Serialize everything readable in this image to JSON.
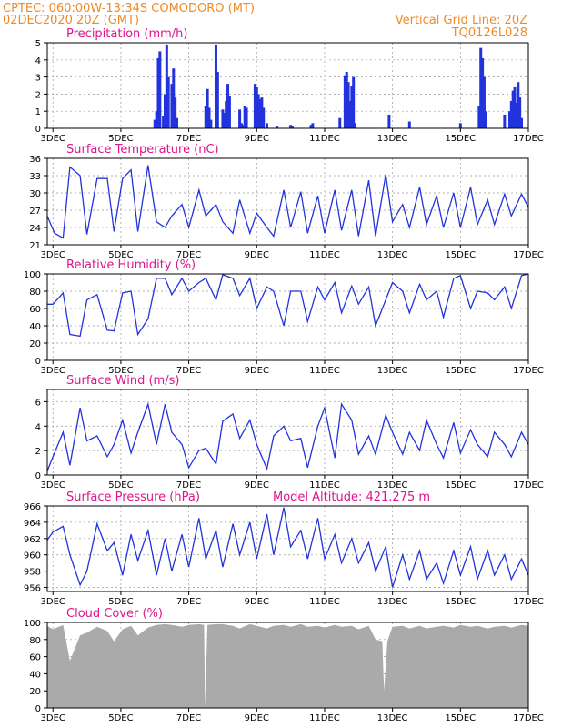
{
  "header": {
    "line1_left": "CPTEC:   060:00W-13:34S   COMODORO (MT)",
    "line2_left": "02DEC2020 20Z (GMT)",
    "line1_right": "Vertical Grid Line: 20Z",
    "line2_right": "TQ0126L028"
  },
  "x_axis": {
    "day_start": 2.833,
    "day_end": 17.0,
    "tick_days": [
      3,
      5,
      7,
      9,
      11,
      13,
      15,
      17
    ],
    "tick_labels": [
      "3DEC",
      "5DEC",
      "7DEC",
      "9DEC",
      "11DEC",
      "13DEC",
      "15DEC",
      "17DEC"
    ]
  },
  "colors": {
    "series": "#2233dd",
    "titles": "#e0138c",
    "header": "#f08a24",
    "cloud": "#aaaaaa"
  },
  "chart_data": [
    {
      "type": "bar",
      "title": "Precipitation (mm/h)",
      "ylim": [
        0,
        5
      ],
      "yticks": [
        0,
        1,
        2,
        3,
        4,
        5
      ],
      "x": [
        6.0,
        6.05,
        6.1,
        6.15,
        6.25,
        6.3,
        6.35,
        6.4,
        6.5,
        6.55,
        6.6,
        6.65,
        7.5,
        7.55,
        7.6,
        7.65,
        7.8,
        7.85,
        8.0,
        8.05,
        8.1,
        8.15,
        8.2,
        8.5,
        8.55,
        8.6,
        8.65,
        8.7,
        8.95,
        9.0,
        9.05,
        9.1,
        9.15,
        9.2,
        9.3,
        9.6,
        10.0,
        10.05,
        10.6,
        10.65,
        11.45,
        11.6,
        11.65,
        11.7,
        11.75,
        11.8,
        11.85,
        11.9,
        12.9,
        13.5,
        15.0,
        15.55,
        15.6,
        15.65,
        15.7,
        15.75,
        16.3,
        16.45,
        16.5,
        16.55,
        16.6,
        16.65,
        16.7,
        16.75,
        16.8
      ],
      "values": [
        0.5,
        1.0,
        4.1,
        4.5,
        0.7,
        2.0,
        4.9,
        3.0,
        2.6,
        3.5,
        1.8,
        0.6,
        1.3,
        2.3,
        1.2,
        0.5,
        4.9,
        3.3,
        1.1,
        0.9,
        1.6,
        2.6,
        1.9,
        1.1,
        0.3,
        0.2,
        1.3,
        1.2,
        2.6,
        2.4,
        2.0,
        1.7,
        1.8,
        1.2,
        0.3,
        0.1,
        0.2,
        0.1,
        0.2,
        0.3,
        0.6,
        3.1,
        3.3,
        2.7,
        1.6,
        2.5,
        3.0,
        0.3,
        0.8,
        0.4,
        0.3,
        1.3,
        4.7,
        4.1,
        3.0,
        1.0,
        0.8,
        1.0,
        1.6,
        2.2,
        2.4,
        1.5,
        2.7,
        1.8,
        0.6
      ]
    },
    {
      "type": "line",
      "title": "Surface Temperature (nC)",
      "ylim": [
        21,
        36
      ],
      "yticks": [
        21,
        24,
        27,
        30,
        33,
        36
      ],
      "x": [
        2.83,
        3.05,
        3.3,
        3.5,
        3.8,
        4.0,
        4.3,
        4.6,
        4.8,
        5.05,
        5.3,
        5.5,
        5.8,
        6.05,
        6.3,
        6.5,
        6.8,
        7.0,
        7.3,
        7.5,
        7.8,
        8.0,
        8.3,
        8.5,
        8.8,
        9.0,
        9.3,
        9.5,
        9.8,
        10.0,
        10.3,
        10.5,
        10.8,
        11.0,
        11.3,
        11.5,
        11.8,
        12.0,
        12.3,
        12.5,
        12.8,
        13.0,
        13.3,
        13.5,
        13.8,
        14.0,
        14.3,
        14.5,
        14.8,
        15.0,
        15.3,
        15.5,
        15.8,
        16.0,
        16.3,
        16.5,
        16.8,
        17.0
      ],
      "values": [
        26.0,
        23.0,
        22.2,
        34.5,
        33.0,
        22.8,
        32.5,
        32.5,
        23.3,
        32.5,
        34.0,
        23.3,
        34.8,
        25.0,
        24.0,
        26.0,
        28.0,
        24.0,
        30.5,
        26.0,
        28.0,
        25.0,
        23.0,
        28.8,
        23.0,
        26.5,
        24.0,
        22.5,
        30.5,
        24.0,
        30.2,
        23.0,
        29.5,
        23.0,
        30.5,
        23.5,
        30.5,
        22.5,
        32.2,
        22.5,
        33.2,
        25.0,
        28.0,
        24.0,
        31.0,
        24.5,
        29.5,
        24.0,
        30.0,
        24.0,
        31.0,
        24.5,
        28.8,
        24.5,
        29.8,
        26.0,
        29.8,
        27.5
      ]
    },
    {
      "type": "line",
      "title": "Relative Humidity (%)",
      "ylim": [
        0,
        100
      ],
      "yticks": [
        0,
        20,
        40,
        60,
        80,
        100
      ],
      "x": [
        2.83,
        3.0,
        3.3,
        3.5,
        3.8,
        4.0,
        4.3,
        4.6,
        4.8,
        5.05,
        5.3,
        5.5,
        5.8,
        6.05,
        6.3,
        6.5,
        6.8,
        7.0,
        7.3,
        7.5,
        7.8,
        8.0,
        8.3,
        8.5,
        8.8,
        9.0,
        9.3,
        9.5,
        9.8,
        10.0,
        10.3,
        10.5,
        10.8,
        11.0,
        11.3,
        11.5,
        11.8,
        12.0,
        12.3,
        12.5,
        12.8,
        13.0,
        13.3,
        13.5,
        13.8,
        14.0,
        14.3,
        14.5,
        14.8,
        15.0,
        15.3,
        15.5,
        15.8,
        16.0,
        16.3,
        16.5,
        16.8,
        17.0
      ],
      "values": [
        65,
        65,
        78,
        30,
        28,
        70,
        76,
        35,
        34,
        78,
        80,
        30,
        48,
        95,
        95,
        76,
        95,
        80,
        90,
        95,
        70,
        99,
        95,
        75,
        95,
        60,
        85,
        80,
        40,
        80,
        80,
        45,
        85,
        70,
        90,
        55,
        86,
        65,
        85,
        40,
        70,
        90,
        80,
        55,
        88,
        70,
        80,
        50,
        95,
        98,
        60,
        80,
        78,
        70,
        85,
        60,
        98,
        100
      ]
    },
    {
      "type": "line",
      "title": "Surface Wind (m/s)",
      "ylim": [
        0,
        7
      ],
      "yticks": [
        0,
        2,
        4,
        6
      ],
      "x": [
        2.83,
        3.0,
        3.3,
        3.5,
        3.8,
        4.0,
        4.3,
        4.6,
        4.8,
        5.05,
        5.3,
        5.5,
        5.8,
        6.05,
        6.3,
        6.5,
        6.8,
        7.0,
        7.3,
        7.5,
        7.8,
        8.0,
        8.3,
        8.5,
        8.8,
        9.0,
        9.3,
        9.5,
        9.8,
        10.0,
        10.3,
        10.5,
        10.8,
        11.0,
        11.3,
        11.5,
        11.8,
        12.0,
        12.3,
        12.5,
        12.8,
        13.0,
        13.3,
        13.5,
        13.8,
        14.0,
        14.3,
        14.5,
        14.8,
        15.0,
        15.3,
        15.5,
        15.8,
        16.0,
        16.3,
        16.5,
        16.8,
        17.0
      ],
      "values": [
        0.3,
        1.5,
        3.5,
        0.8,
        5.5,
        2.8,
        3.2,
        1.5,
        2.5,
        4.5,
        1.8,
        3.5,
        5.8,
        2.5,
        5.8,
        3.5,
        2.5,
        0.6,
        2.0,
        2.2,
        0.9,
        4.4,
        5.0,
        3.0,
        4.5,
        2.5,
        0.5,
        3.2,
        4.0,
        2.8,
        3.0,
        0.6,
        4.0,
        5.5,
        1.4,
        5.8,
        4.5,
        1.7,
        3.2,
        1.7,
        4.9,
        3.5,
        1.7,
        3.5,
        2.0,
        4.5,
        2.5,
        1.4,
        4.3,
        1.8,
        3.7,
        2.5,
        1.5,
        3.5,
        2.5,
        1.5,
        3.5,
        2.5
      ]
    },
    {
      "type": "line",
      "title": "Surface Pressure (hPa)",
      "annotation": "Model Altitude: 421.275 m",
      "ylim": [
        955.5,
        966
      ],
      "yticks": [
        956,
        958,
        960,
        962,
        964,
        966
      ],
      "x": [
        2.83,
        3.0,
        3.3,
        3.5,
        3.8,
        4.0,
        4.3,
        4.6,
        4.8,
        5.05,
        5.3,
        5.5,
        5.8,
        6.05,
        6.3,
        6.5,
        6.8,
        7.0,
        7.3,
        7.5,
        7.8,
        8.0,
        8.3,
        8.5,
        8.8,
        9.0,
        9.3,
        9.5,
        9.8,
        10.0,
        10.3,
        10.5,
        10.8,
        11.0,
        11.3,
        11.5,
        11.8,
        12.0,
        12.3,
        12.5,
        12.8,
        13.0,
        13.3,
        13.5,
        13.8,
        14.0,
        14.3,
        14.5,
        14.8,
        15.0,
        15.3,
        15.5,
        15.8,
        16.0,
        16.3,
        16.5,
        16.8,
        17.0
      ],
      "values": [
        961.8,
        962.8,
        963.5,
        960.0,
        956.3,
        958.0,
        963.8,
        960.5,
        961.5,
        957.5,
        962.5,
        959.3,
        963.0,
        957.5,
        962.0,
        958.0,
        962.5,
        958.5,
        964.5,
        959.5,
        963.0,
        958.5,
        963.8,
        960.0,
        964.0,
        959.5,
        965.0,
        960.0,
        965.8,
        961.0,
        963.0,
        959.5,
        964.5,
        959.5,
        962.5,
        959.0,
        962.0,
        959.0,
        961.5,
        958.0,
        961.0,
        956.0,
        960.0,
        957.0,
        960.5,
        957.0,
        959.0,
        956.5,
        960.5,
        957.5,
        961.0,
        957.0,
        960.5,
        957.5,
        960.0,
        957.0,
        959.5,
        957.5
      ]
    },
    {
      "type": "area",
      "title": "Cloud Cover (%)",
      "ylim": [
        0,
        100
      ],
      "yticks": [
        0,
        20,
        40,
        60,
        80,
        100
      ],
      "x": [
        2.83,
        3.0,
        3.3,
        3.5,
        3.8,
        4.0,
        4.3,
        4.6,
        4.8,
        5.05,
        5.3,
        5.5,
        5.8,
        6.05,
        6.3,
        6.5,
        6.8,
        7.0,
        7.3,
        7.45,
        7.48,
        7.55,
        7.8,
        8.0,
        8.3,
        8.5,
        8.8,
        9.0,
        9.3,
        9.5,
        9.8,
        10.0,
        10.3,
        10.5,
        10.8,
        11.0,
        11.3,
        11.5,
        11.8,
        12.0,
        12.3,
        12.5,
        12.7,
        12.75,
        12.85,
        13.0,
        13.3,
        13.5,
        13.8,
        14.0,
        14.3,
        14.5,
        14.8,
        15.0,
        15.3,
        15.5,
        15.8,
        16.0,
        16.3,
        16.5,
        16.8,
        17.0
      ],
      "values": [
        96,
        92,
        97,
        55,
        85,
        88,
        95,
        90,
        78,
        92,
        96,
        85,
        94,
        97,
        98,
        97,
        95,
        97,
        98,
        97,
        0,
        97,
        98,
        98,
        96,
        93,
        98,
        96,
        93,
        96,
        97,
        95,
        98,
        95,
        96,
        94,
        97,
        95,
        96,
        92,
        96,
        80,
        78,
        20,
        78,
        95,
        96,
        93,
        96,
        93,
        95,
        96,
        94,
        97,
        95,
        96,
        93,
        95,
        96,
        94,
        97,
        96
      ]
    }
  ]
}
